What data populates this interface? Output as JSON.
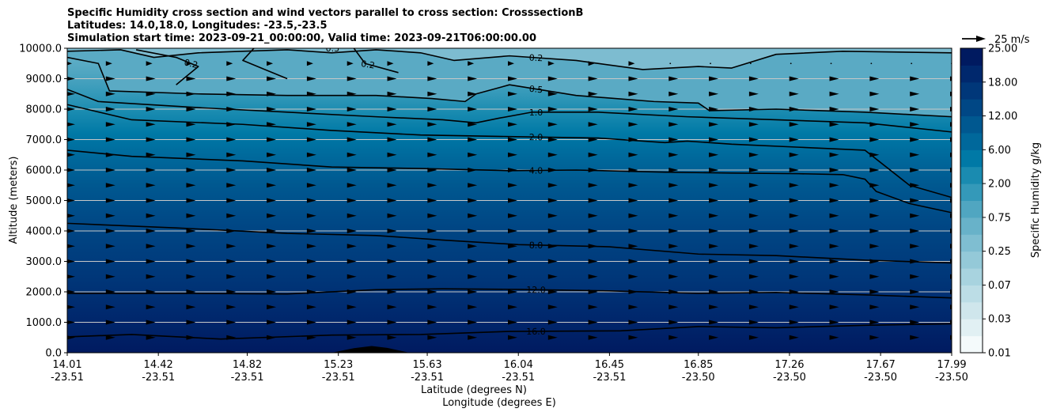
{
  "chart_data": {
    "type": "contourf",
    "title_lines": [
      "Specific Humidity cross section and wind vectors parallel to cross section: CrosssectionB",
      "Latitudes: 14.0,18.0, Longitudes: -23.5,-23.5",
      "Simulation start time: 2023-09-21_00:00:00, Valid time: 2023-09-21T06:00:00.00"
    ],
    "ylabel": "Altitude (meters)",
    "xlabel_lat": "Latitude (degrees N)",
    "xlabel_lon": "Longitude (degrees E)",
    "ylim": [
      0,
      10000
    ],
    "y_ticks": [
      "0.0",
      "1000.0",
      "2000.0",
      "3000.0",
      "4000.0",
      "5000.0",
      "6000.0",
      "7000.0",
      "8000.0",
      "9000.0",
      "10000.0"
    ],
    "x_range": [
      14.01,
      17.99
    ],
    "x_ticks": [
      {
        "lat": "14.01",
        "lon": "-23.51"
      },
      {
        "lat": "14.42",
        "lon": "-23.51"
      },
      {
        "lat": "14.82",
        "lon": "-23.51"
      },
      {
        "lat": "15.23",
        "lon": "-23.51"
      },
      {
        "lat": "15.63",
        "lon": "-23.51"
      },
      {
        "lat": "16.04",
        "lon": "-23.51"
      },
      {
        "lat": "16.45",
        "lon": "-23.51"
      },
      {
        "lat": "16.85",
        "lon": "-23.50"
      },
      {
        "lat": "17.26",
        "lon": "-23.50"
      },
      {
        "lat": "17.67",
        "lon": "-23.50"
      },
      {
        "lat": "17.99",
        "lon": "-23.50"
      }
    ],
    "grid_y": true,
    "colorbar": {
      "label": "Specific Humidity g/kg",
      "levels": [
        0.01,
        0.02,
        0.03,
        0.05,
        0.07,
        0.1,
        0.25,
        0.5,
        0.75,
        1.0,
        2.0,
        4.0,
        6.0,
        8.0,
        12.0,
        16.0,
        18.0,
        20.0,
        25.0
      ],
      "tick_labels": [
        "0.01",
        "0.03",
        "0.07",
        "0.25",
        "0.75",
        "2.00",
        "6.00",
        "12.00",
        "18.00",
        "25.00"
      ],
      "tick_levels": [
        0.01,
        0.03,
        0.07,
        0.25,
        0.75,
        2.0,
        6.0,
        12.0,
        18.0,
        25.0
      ],
      "colors": [
        "#f4fafb",
        "#e1f0f3",
        "#cfe6ec",
        "#bcdde6",
        "#a8d3df",
        "#94c9d8",
        "#7fbed1",
        "#68b2c9",
        "#50a6c1",
        "#3499b9",
        "#1a8bb0",
        "#0079a6",
        "#00689b",
        "#005890",
        "#004785",
        "#003779",
        "#00286d",
        "#001a60"
      ]
    },
    "quiver_key": {
      "label": "25 m/s",
      "speed": 25
    },
    "wind_level_spacing_m": 500,
    "contour_lines": [
      {
        "level": "16.0",
        "label_at": 0.53,
        "points": [
          [
            14.01,
            520
          ],
          [
            14.3,
            600
          ],
          [
            14.7,
            450
          ],
          [
            15.2,
            580
          ],
          [
            15.6,
            600
          ],
          [
            16.0,
            700
          ],
          [
            16.5,
            720
          ],
          [
            16.85,
            860
          ],
          [
            17.2,
            820
          ],
          [
            17.6,
            900
          ],
          [
            17.99,
            950
          ]
        ]
      },
      {
        "level": "12.0",
        "label_at": 0.53,
        "points": [
          [
            14.01,
            1950
          ],
          [
            14.5,
            1950
          ],
          [
            15.0,
            1930
          ],
          [
            15.4,
            2070
          ],
          [
            15.7,
            2100
          ],
          [
            16.04,
            2080
          ],
          [
            16.45,
            2030
          ],
          [
            16.85,
            1950
          ],
          [
            17.2,
            1980
          ],
          [
            17.6,
            1900
          ],
          [
            17.99,
            1800
          ]
        ]
      },
      {
        "level": "8.0",
        "label_at": 0.53,
        "points": [
          [
            14.01,
            4250
          ],
          [
            14.5,
            4100
          ],
          [
            15.0,
            3920
          ],
          [
            15.4,
            3850
          ],
          [
            15.7,
            3700
          ],
          [
            16.04,
            3550
          ],
          [
            16.45,
            3480
          ],
          [
            16.85,
            3240
          ],
          [
            17.2,
            3190
          ],
          [
            17.6,
            3040
          ],
          [
            17.99,
            2950
          ]
        ]
      },
      {
        "level": "4.0",
        "label_at": 0.53,
        "points": [
          [
            14.01,
            6650
          ],
          [
            14.3,
            6450
          ],
          [
            14.8,
            6300
          ],
          [
            15.2,
            6100
          ],
          [
            15.6,
            6050
          ],
          [
            16.0,
            5980
          ],
          [
            16.3,
            6000
          ],
          [
            16.7,
            5930
          ],
          [
            17.0,
            5900
          ],
          [
            17.3,
            5880
          ],
          [
            17.5,
            5850
          ],
          [
            17.6,
            5700
          ],
          [
            17.65,
            5300
          ],
          [
            17.8,
            4900
          ],
          [
            17.99,
            4600
          ]
        ]
      },
      {
        "level": "2.0",
        "label_at": 0.53,
        "points": [
          [
            14.01,
            8150
          ],
          [
            14.3,
            7650
          ],
          [
            14.8,
            7500
          ],
          [
            15.2,
            7300
          ],
          [
            15.6,
            7150
          ],
          [
            16.0,
            7100
          ],
          [
            16.4,
            7050
          ],
          [
            16.7,
            6900
          ],
          [
            16.8,
            6950
          ],
          [
            17.0,
            6850
          ],
          [
            17.3,
            6750
          ],
          [
            17.6,
            6650
          ],
          [
            17.8,
            5500
          ],
          [
            17.99,
            5100
          ]
        ]
      },
      {
        "level": "1.0",
        "label_at": 0.53,
        "points": [
          [
            14.01,
            8650
          ],
          [
            14.15,
            8250
          ],
          [
            14.6,
            8050
          ],
          [
            15.0,
            7900
          ],
          [
            15.4,
            7750
          ],
          [
            15.7,
            7650
          ],
          [
            15.85,
            7550
          ],
          [
            15.95,
            7700
          ],
          [
            16.1,
            7900
          ],
          [
            16.4,
            7900
          ],
          [
            16.8,
            7750
          ],
          [
            17.2,
            7650
          ],
          [
            17.6,
            7550
          ],
          [
            17.99,
            7250
          ]
        ]
      },
      {
        "level": "0.5",
        "label_at": 0.53,
        "points": [
          [
            14.01,
            9700
          ],
          [
            14.15,
            9500
          ],
          [
            14.2,
            8600
          ],
          [
            14.6,
            8500
          ],
          [
            15.0,
            8450
          ],
          [
            15.4,
            8450
          ],
          [
            15.65,
            8350
          ],
          [
            15.8,
            8250
          ],
          [
            15.85,
            8500
          ],
          [
            16.0,
            8800
          ],
          [
            16.3,
            8450
          ],
          [
            16.65,
            8250
          ],
          [
            16.85,
            8200
          ],
          [
            16.9,
            7950
          ],
          [
            17.2,
            8000
          ],
          [
            17.6,
            7900
          ],
          [
            17.99,
            7750
          ]
        ]
      },
      {
        "level": "0.2",
        "label_at": 0.53,
        "points": [
          [
            14.01,
            9900
          ],
          [
            14.25,
            9950
          ],
          [
            14.4,
            9700
          ],
          [
            14.6,
            9850
          ],
          [
            14.8,
            9900
          ],
          [
            15.0,
            9950
          ],
          [
            15.2,
            9850
          ],
          [
            15.4,
            9950
          ],
          [
            15.6,
            9850
          ],
          [
            15.75,
            9600
          ],
          [
            16.0,
            9750
          ],
          [
            16.3,
            9600
          ],
          [
            16.6,
            9300
          ],
          [
            16.85,
            9400
          ],
          [
            17.0,
            9350
          ],
          [
            17.2,
            9800
          ],
          [
            17.5,
            9900
          ],
          [
            17.99,
            9850
          ]
        ]
      },
      {
        "level": "0.2",
        "label_at": 0.14,
        "points": [
          [
            14.32,
            9950
          ],
          [
            14.5,
            9700
          ],
          [
            14.6,
            9400
          ],
          [
            14.55,
            9100
          ],
          [
            14.5,
            8800
          ]
        ]
      },
      {
        "level": "0.5",
        "label_at": 0.3,
        "points": [
          [
            14.85,
            10000
          ],
          [
            14.8,
            9600
          ],
          [
            14.9,
            9300
          ],
          [
            15.0,
            9000
          ]
        ]
      },
      {
        "level": "0.2",
        "label_at": 0.34,
        "points": [
          [
            15.3,
            10000
          ],
          [
            15.35,
            9500
          ],
          [
            15.5,
            9200
          ]
        ]
      }
    ],
    "terrain": {
      "points": [
        [
          15.2,
          0
        ],
        [
          15.3,
          150
        ],
        [
          15.38,
          220
        ],
        [
          15.45,
          160
        ],
        [
          15.55,
          0
        ]
      ]
    }
  }
}
